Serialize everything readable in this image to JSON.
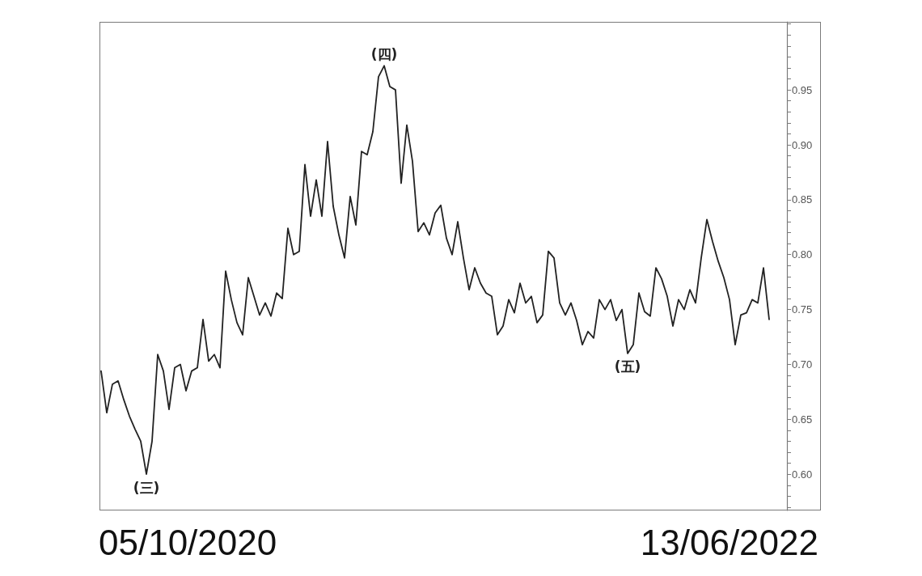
{
  "chart_data": {
    "type": "line",
    "color": "#222222",
    "tick_labels": "y",
    "categories": [
      null,
      null,
      null,
      null,
      null,
      null,
      null,
      null,
      null,
      null,
      null,
      null,
      null,
      null,
      null,
      null,
      null,
      null,
      null,
      null,
      null,
      null,
      null,
      null,
      null,
      null,
      null,
      null,
      null,
      null,
      null,
      null,
      null,
      null,
      null,
      null,
      null,
      null,
      null,
      null,
      null,
      null,
      null,
      null,
      null,
      null,
      null,
      null,
      null,
      null,
      null,
      null,
      null,
      null,
      null,
      null,
      null,
      null,
      null,
      null,
      null,
      null,
      null,
      null,
      null,
      null,
      null,
      null,
      null,
      null,
      null,
      null,
      null,
      null,
      null,
      null,
      null,
      null,
      null,
      null,
      null,
      null,
      null,
      null,
      null,
      null,
      null,
      null,
      null,
      null,
      null,
      null,
      null,
      null,
      null,
      null,
      null,
      null,
      null,
      null,
      null,
      null,
      null,
      null,
      null,
      null,
      null,
      null,
      null,
      null,
      null,
      null,
      null,
      null,
      null,
      null,
      null,
      null,
      null
    ],
    "values": [
      0.694,
      0.656,
      0.682,
      0.685,
      0.668,
      0.653,
      0.641,
      0.63,
      0.6,
      0.63,
      0.709,
      0.694,
      0.659,
      0.697,
      0.7,
      0.676,
      0.694,
      0.697,
      0.741,
      0.703,
      0.709,
      0.697,
      0.785,
      0.759,
      0.738,
      0.727,
      0.779,
      0.762,
      0.745,
      0.756,
      0.744,
      0.765,
      0.76,
      0.824,
      0.8,
      0.803,
      0.882,
      0.835,
      0.868,
      0.835,
      0.903,
      0.844,
      0.818,
      0.797,
      0.853,
      0.827,
      0.894,
      0.891,
      0.912,
      0.962,
      0.972,
      0.953,
      0.95,
      0.865,
      0.918,
      0.885,
      0.821,
      0.829,
      0.818,
      0.838,
      0.845,
      0.815,
      0.8,
      0.83,
      0.797,
      0.768,
      0.788,
      0.774,
      0.765,
      0.762,
      0.727,
      0.735,
      0.759,
      0.747,
      0.774,
      0.756,
      0.762,
      0.738,
      0.745,
      0.803,
      0.797,
      0.756,
      0.745,
      0.756,
      0.74,
      0.718,
      0.73,
      0.724,
      0.759,
      0.75,
      0.759,
      0.74,
      0.75,
      0.71,
      0.718,
      0.765,
      0.748,
      0.744,
      0.788,
      0.778,
      0.762,
      0.735,
      0.759,
      0.75,
      0.768,
      0.756,
      0.797,
      0.832,
      0.812,
      0.794,
      0.779,
      0.759,
      0.718,
      0.745,
      0.747,
      0.759,
      0.756,
      0.788,
      0.741
    ],
    "ylim": [
      0.567,
      1.012
    ],
    "yticks": [
      {
        "value": 0.6,
        "label": "0.60"
      },
      {
        "value": 0.65,
        "label": "0.65"
      },
      {
        "value": 0.7,
        "label": "0.70"
      },
      {
        "value": 0.75,
        "label": "0.75"
      },
      {
        "value": 0.8,
        "label": "0.80"
      },
      {
        "value": 0.85,
        "label": "0.85"
      },
      {
        "value": 0.9,
        "label": "0.90"
      },
      {
        "value": 0.95,
        "label": "0.95"
      }
    ],
    "annotations": [
      "05/10/2020",
      "13/06/2022",
      {
        "text": "(三)",
        "y": 0.6
      },
      {
        "text": "(四)",
        "y": 0.972
      },
      {
        "text": "(五)",
        "y": 0.71
      }
    ]
  }
}
